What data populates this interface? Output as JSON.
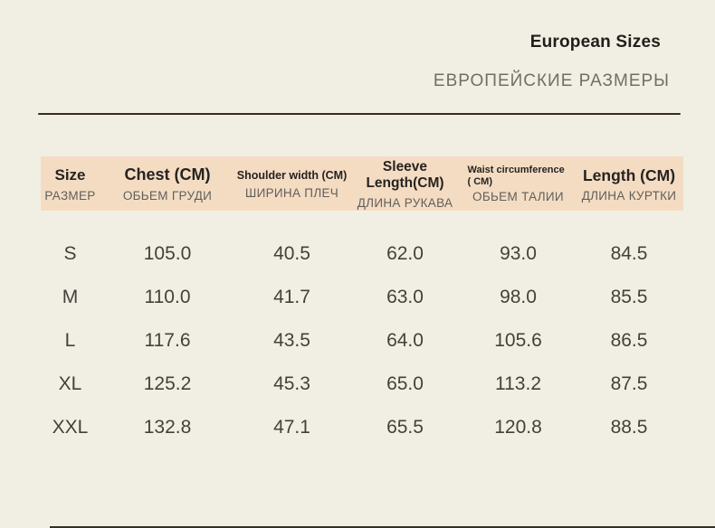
{
  "header": {
    "title_en": "European Sizes",
    "title_ru": "ЕВРОПЕЙСКИЕ РАЗМЕРЫ"
  },
  "size_table": {
    "columns": [
      {
        "label_en": "Size",
        "label_ru": "РАЗМЕР"
      },
      {
        "label_en": "Chest (CM)",
        "label_ru": "ОБЬЕМ ГРУДИ"
      },
      {
        "label_en": "Shoulder width (CM)",
        "label_ru": "ШИРИНА ПЛЕЧ"
      },
      {
        "label_en": "Sleeve Length(CM)",
        "label_ru": "ДЛИНА РУКАВА"
      },
      {
        "label_en": "Waist circumference ( CM)",
        "label_ru": "ОБЬЕМ ТАЛИИ"
      },
      {
        "label_en": "Length (CM)",
        "label_ru": "ДЛИНА КУРТКИ"
      }
    ],
    "rows": [
      {
        "size": "S",
        "chest": "105.0",
        "shoulder": "40.5",
        "sleeve": "62.0",
        "waist": "93.0",
        "length": "84.5"
      },
      {
        "size": "M",
        "chest": "110.0",
        "shoulder": "41.7",
        "sleeve": "63.0",
        "waist": "98.0",
        "length": "85.5"
      },
      {
        "size": "L",
        "chest": "117.6",
        "shoulder": "43.5",
        "sleeve": "64.0",
        "waist": "105.6",
        "length": "86.5"
      },
      {
        "size": "XL",
        "chest": "125.2",
        "shoulder": "45.3",
        "sleeve": "65.0",
        "waist": "113.2",
        "length": "87.5"
      },
      {
        "size": "XXL",
        "chest": "132.8",
        "shoulder": "47.1",
        "sleeve": "65.5",
        "waist": "120.8",
        "length": "88.5"
      }
    ]
  },
  "colors": {
    "background": "#f1efe3",
    "header_band": "#f4dcc3",
    "title": "#211e1b",
    "subtitle": "#6f6e68",
    "text": "#44413a",
    "muted": "#605f59",
    "divider": "#3a2823"
  }
}
